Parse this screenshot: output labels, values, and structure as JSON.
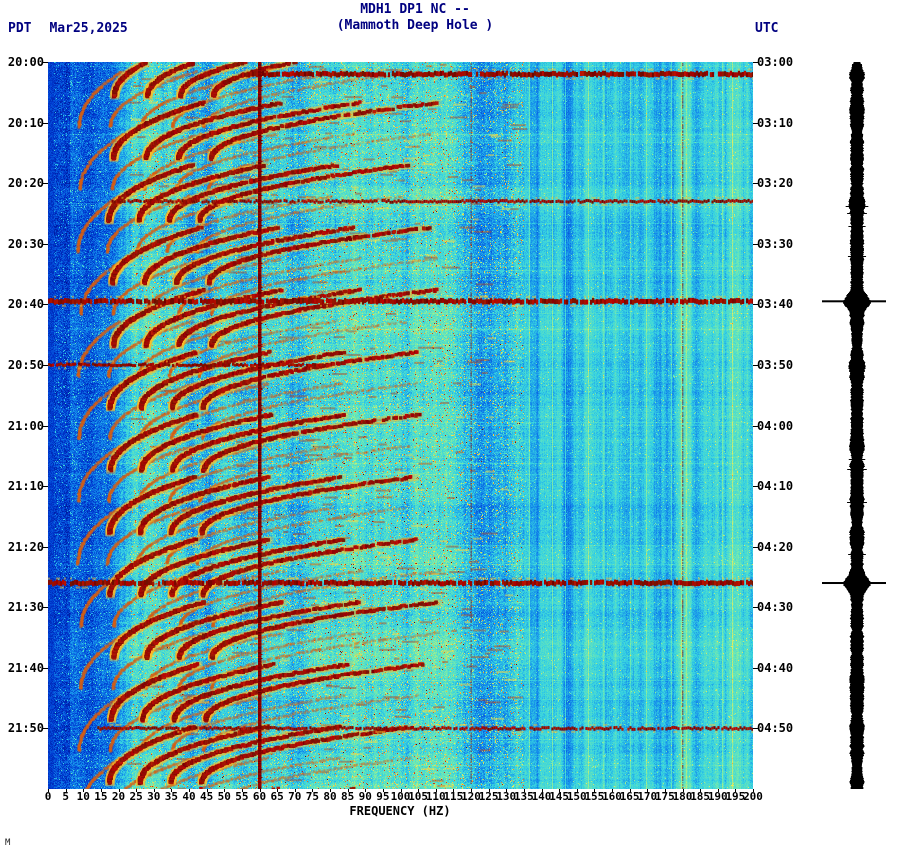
{
  "header": {
    "title": "MDH1 DP1 NC --",
    "subtitle": "(Mammoth Deep Hole )",
    "tz_left": "PDT",
    "date": "Mar25,2025",
    "tz_right": "UTC"
  },
  "x_axis": {
    "label": "FREQUENCY (HZ)",
    "min_hz": 0,
    "max_hz": 200,
    "tick_step_hz": 5,
    "tick_labels": [
      "0",
      "5",
      "10",
      "15",
      "20",
      "25",
      "30",
      "35",
      "40",
      "45",
      "50",
      "55",
      "60",
      "65",
      "70",
      "75",
      "80",
      "85",
      "90",
      "95",
      "100",
      "105",
      "110",
      "115",
      "120",
      "125",
      "130",
      "135",
      "140",
      "145",
      "150",
      "155",
      "160",
      "165",
      "170",
      "175",
      "180",
      "185",
      "190",
      "195",
      "200"
    ]
  },
  "left_axis": {
    "tick_labels": [
      "20:00",
      "20:10",
      "20:20",
      "20:30",
      "20:40",
      "20:50",
      "21:00",
      "21:10",
      "21:20",
      "21:30",
      "21:40",
      "21:50"
    ]
  },
  "right_axis": {
    "tick_labels": [
      "03:00",
      "03:10",
      "03:20",
      "03:30",
      "03:40",
      "03:50",
      "04:00",
      "04:10",
      "04:20",
      "04:30",
      "04:40",
      "04:50"
    ]
  },
  "corner_mark": "M",
  "chart_data": {
    "type": "heatmap",
    "subtype": "seismic-spectrogram",
    "station": "MDH1 DP1 NC",
    "station_name": "Mammoth Deep Hole",
    "date": "Mar25,2025",
    "time_start_pdt": "20:00",
    "time_end_pdt": "22:00",
    "time_start_utc": "03:00",
    "time_end_utc": "05:00",
    "duration_min": 120,
    "freq_range_hz": [
      0,
      200
    ],
    "powerline_hz": [
      60,
      120,
      180
    ],
    "quiet_band_below_hz": 20,
    "tremor": {
      "description": "repeating harmonic glide arcs, dark red, rising from ~18-45 Hz toward ~40-105 Hz, repeating about every 10 minutes",
      "period_min": 10.3,
      "first_start_min": -4,
      "count": 13,
      "secondary_offset_min": 5.15,
      "fundamental_hz": 21,
      "harmonics": 5
    },
    "events": [
      {
        "pdt": "20:02",
        "utc": "03:02",
        "minute": 2,
        "f_min_hz": 55,
        "f_max_hz": 200,
        "strength": 0.8
      },
      {
        "pdt": "20:23",
        "utc": "03:23",
        "minute": 23,
        "f_min_hz": 18,
        "f_max_hz": 200,
        "strength": 0.55
      },
      {
        "pdt": "20:39",
        "utc": "03:39",
        "minute": 39.5,
        "f_min_hz": 0,
        "f_max_hz": 200,
        "strength": 1.0
      },
      {
        "pdt": "20:50",
        "utc": "03:50",
        "minute": 50,
        "f_min_hz": 0,
        "f_max_hz": 78,
        "strength": 0.5
      },
      {
        "pdt": "21:26",
        "utc": "04:26",
        "minute": 86,
        "f_min_hz": 0,
        "f_max_hz": 200,
        "strength": 1.0
      },
      {
        "pdt": "21:50",
        "utc": "04:50",
        "minute": 110,
        "f_min_hz": 14,
        "f_max_hz": 200,
        "strength": 0.6
      }
    ],
    "colors": {
      "background_cyan": "#3cd2dc",
      "low_freq_blue": "#1e78dc",
      "arc_red": "#a00000",
      "halo_yellow": "#ffbe28",
      "event_red": "#8c0000",
      "strip_black": "#000000"
    },
    "legend": "none",
    "grid": false
  }
}
